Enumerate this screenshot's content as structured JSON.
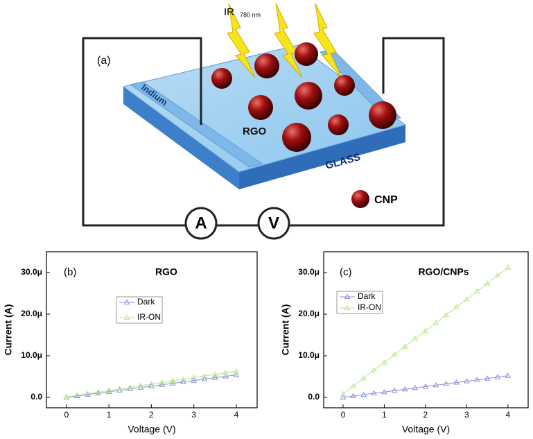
{
  "diagram": {
    "panel_label": "(a)",
    "ir_label": "IR",
    "wavelength": "780 nm",
    "electrode": "Indium",
    "film": "RGO",
    "substrate": "GLASS",
    "legend": "CNP",
    "ammeter": "A",
    "voltmeter": "V"
  },
  "chart_data": [
    {
      "type": "line",
      "panel_label": "(b)",
      "title": "RGO",
      "xlabel": "Voltage (V)",
      "ylabel": "Current (A)",
      "x": [
        0,
        0.25,
        0.5,
        0.75,
        1,
        1.25,
        1.5,
        1.75,
        2,
        2.25,
        2.5,
        2.75,
        3,
        3.25,
        3.5,
        3.75,
        4
      ],
      "series": [
        {
          "name": "Dark",
          "color": "#8c8cdc",
          "values": [
            0,
            3.4e-07,
            6.8e-07,
            1.01e-06,
            1.35e-06,
            1.69e-06,
            2.03e-06,
            2.36e-06,
            2.7e-06,
            3.04e-06,
            3.38e-06,
            3.71e-06,
            4.05e-06,
            4.39e-06,
            4.73e-06,
            5.06e-06,
            5.4e-06
          ]
        },
        {
          "name": "IR-ON",
          "color": "#b6e68a",
          "values": [
            1e-07,
            4.9e-07,
            8.8e-07,
            1.26e-06,
            1.65e-06,
            2.04e-06,
            2.43e-06,
            2.81e-06,
            3.2e-06,
            3.59e-06,
            3.98e-06,
            4.36e-06,
            4.75e-06,
            5.14e-06,
            5.53e-06,
            5.91e-06,
            6.3e-06
          ]
        }
      ],
      "xlim": [
        -0.47,
        4.49
      ],
      "ylim": [
        -2.5e-06,
        3.5e-05
      ],
      "xticks": [
        0,
        1,
        2,
        3,
        4
      ],
      "yticks": [
        {
          "value": 0,
          "label": "0.0"
        },
        {
          "value": 1e-05,
          "label": "10.0μ"
        },
        {
          "value": 2e-05,
          "label": "20.0μ"
        },
        {
          "value": 3e-05,
          "label": "30.0μ"
        }
      ]
    },
    {
      "type": "line",
      "panel_label": "(c)",
      "title": "RGO/CNPs",
      "xlabel": "Voltage (V)",
      "ylabel": "Current (A)",
      "x": [
        0,
        0.25,
        0.5,
        0.75,
        1,
        1.25,
        1.5,
        1.75,
        2,
        2.25,
        2.5,
        2.75,
        3,
        3.25,
        3.5,
        3.75,
        4
      ],
      "series": [
        {
          "name": "Dark",
          "color": "#8c8cdc",
          "values": [
            0,
            3.3e-07,
            6.5e-07,
            9.8e-07,
            1.3e-06,
            1.63e-06,
            1.95e-06,
            2.28e-06,
            2.6e-06,
            2.93e-06,
            3.25e-06,
            3.58e-06,
            3.9e-06,
            4.23e-06,
            4.55e-06,
            4.88e-06,
            5.2e-06
          ]
        },
        {
          "name": "IR-ON",
          "color": "#b6e68a",
          "values": [
            8e-07,
            2.7e-06,
            4.6e-06,
            6.5e-06,
            8.4e-06,
            1.03e-05,
            1.22e-05,
            1.41e-05,
            1.6e-05,
            1.79e-05,
            1.98e-05,
            2.17e-05,
            2.36e-05,
            2.55e-05,
            2.74e-05,
            2.93e-05,
            3.12e-05
          ]
        }
      ],
      "xlim": [
        -0.47,
        4.49
      ],
      "ylim": [
        -2.5e-06,
        3.5e-05
      ],
      "xticks": [
        0,
        1,
        2,
        3,
        4
      ],
      "yticks": [
        {
          "value": 0,
          "label": "0.0"
        },
        {
          "value": 1e-05,
          "label": "10.0μ"
        },
        {
          "value": 2e-05,
          "label": "20.0μ"
        },
        {
          "value": 3e-05,
          "label": "30.0μ"
        }
      ]
    }
  ]
}
